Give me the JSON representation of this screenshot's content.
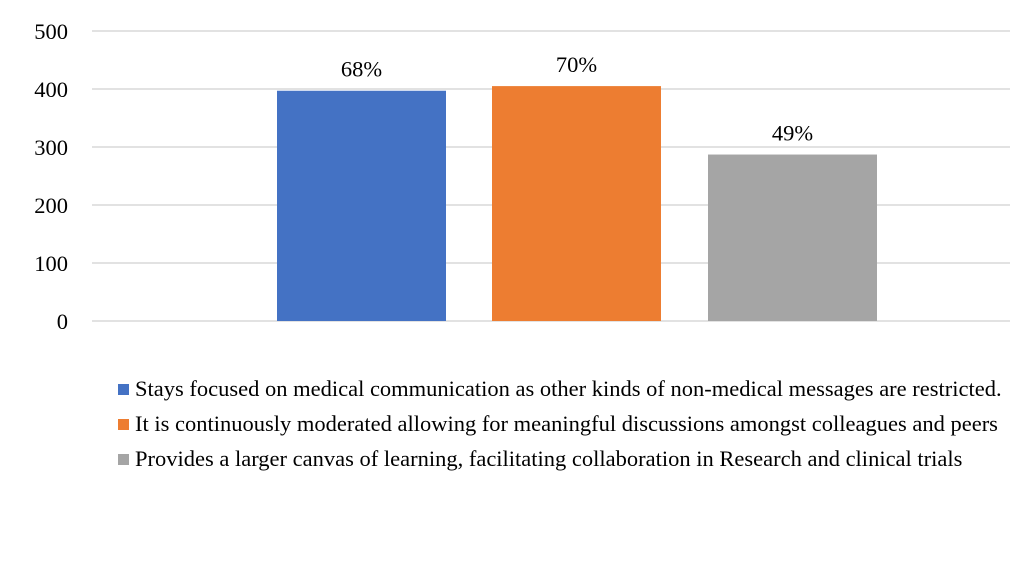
{
  "chart_data": {
    "type": "bar",
    "title": "",
    "xlabel": "",
    "ylabel": "",
    "ylim": [
      0,
      500
    ],
    "yticks": [
      0,
      100,
      200,
      300,
      400,
      500
    ],
    "grid": true,
    "legend_placement": "bottom",
    "series": [
      {
        "name": "Stays focused on medical communication as other kinds of non-medical messages are restricted.",
        "value": 397,
        "label": "68%",
        "color": "#4472C4"
      },
      {
        "name": "It is continuously moderated allowing for meaningful discussions amongst colleagues and peers",
        "value": 405,
        "label": "70%",
        "color": "#ED7D31"
      },
      {
        "name": "Provides a larger canvas of learning, facilitating collaboration in Research and clinical trials",
        "value": 287,
        "label": "49%",
        "color": "#A5A5A5"
      }
    ]
  }
}
